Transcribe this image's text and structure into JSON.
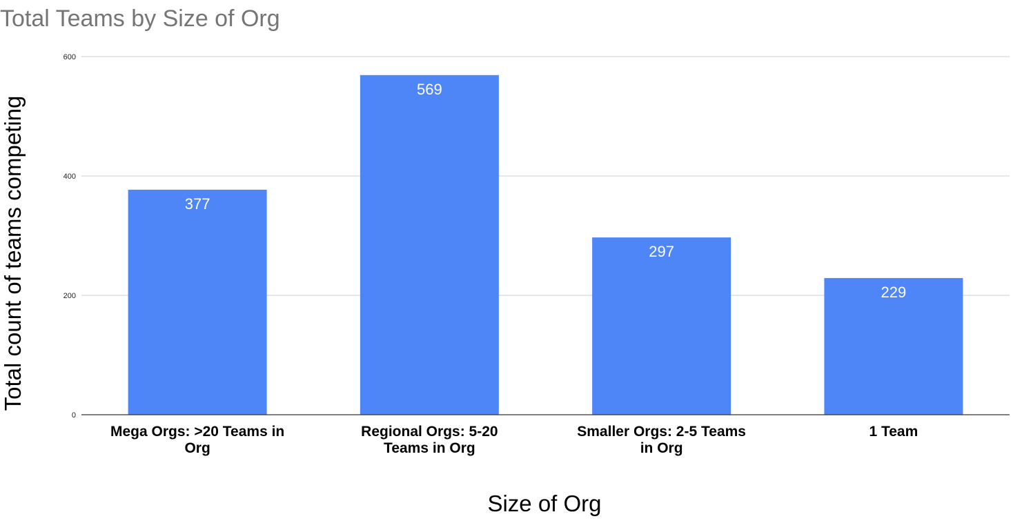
{
  "chart_data": {
    "type": "bar",
    "title": "Total Teams by Size of Org",
    "xlabel": "Size of Org",
    "ylabel": "Total count of teams competing",
    "categories": [
      [
        "Mega Orgs: >20 Teams in",
        "Org"
      ],
      [
        "Regional Orgs: 5-20",
        "Teams in Org"
      ],
      [
        "Smaller Orgs: 2-5 Teams",
        "in Org"
      ],
      [
        "1 Team"
      ]
    ],
    "values": [
      377,
      569,
      297,
      229
    ],
    "ylim": [
      0,
      600
    ],
    "yticks": [
      0,
      200,
      400,
      600
    ],
    "grid": true,
    "legend": "none",
    "data_labels": true,
    "colors": {
      "bar": "#4f86f7",
      "grid": "#cccccc",
      "axis": "#333333",
      "data_label": "#ffffff"
    }
  }
}
